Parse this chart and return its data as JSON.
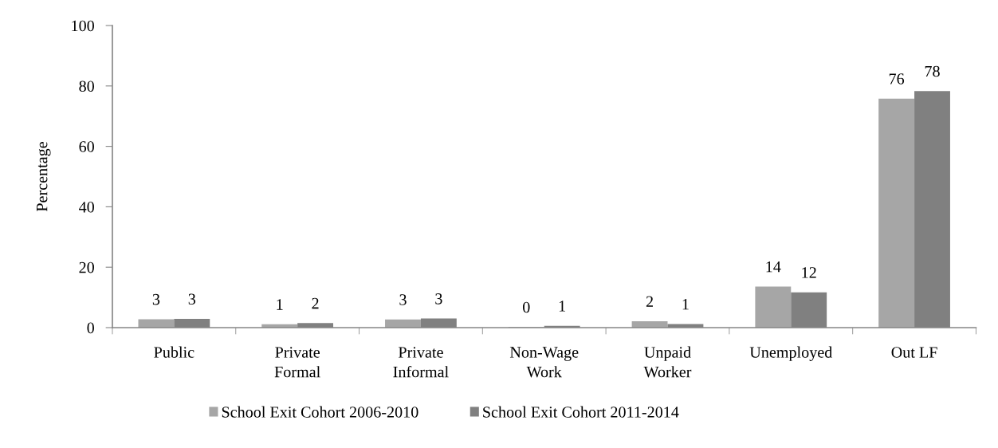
{
  "chart_data": {
    "type": "bar",
    "ylabel": "Percentage",
    "categories": [
      "Public",
      "Private\nFormal",
      "Private\nInformal",
      "Non-Wage\nWork",
      "Unpaid\nWorker",
      "Unemployed",
      "Out LF"
    ],
    "series": [
      {
        "name": "School Exit Cohort 2006-2010",
        "color": "#a6a6a6",
        "values": [
          2.8,
          1.1,
          2.7,
          0.2,
          2.1,
          13.6,
          75.8
        ],
        "value_labels": [
          "3",
          "1",
          "3",
          "0",
          "2",
          "14",
          "76"
        ]
      },
      {
        "name": "School Exit Cohort 2011-2014",
        "color": "#808080",
        "values": [
          2.9,
          1.5,
          3.0,
          0.6,
          1.2,
          11.7,
          78.3
        ],
        "value_labels": [
          "3",
          "2",
          "3",
          "1",
          "1",
          "12",
          "78"
        ]
      }
    ],
    "ylim": [
      0,
      100
    ],
    "yticks": [
      0,
      20,
      40,
      60,
      80,
      100
    ],
    "grid": false,
    "legend": "bottom"
  }
}
